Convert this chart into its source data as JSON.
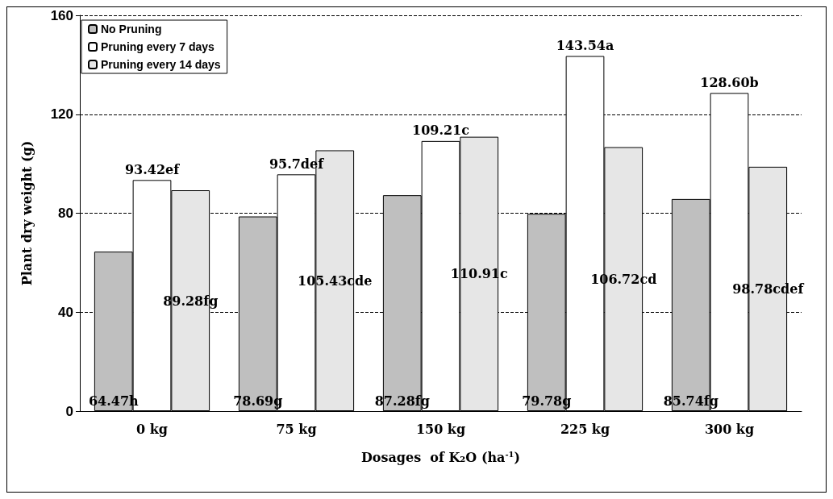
{
  "chart_data": {
    "type": "bar",
    "xlabel": "Dosages  of K₂O (ha$^{-1}$)",
    "ylabel": "Plant dry weight (g)",
    "categories": [
      "0 kg",
      "75 kg",
      "150 kg",
      "225 kg",
      "300 kg"
    ],
    "series": [
      {
        "name": "No Pruning",
        "color": "#bfbfbf",
        "values": [
          64.47,
          78.69,
          87.28,
          79.78,
          85.74
        ],
        "value_labels": [
          "64.47h",
          "78.69g",
          "87.28fg",
          "79.78g",
          "85.74fg"
        ]
      },
      {
        "name": "Pruning every 7 days",
        "color": "#ffffff",
        "values": [
          93.42,
          95.7,
          109.21,
          143.54,
          128.6
        ],
        "value_labels": [
          "93.42ef",
          "95.7def",
          "109.21c",
          "143.54a",
          "128.60b"
        ]
      },
      {
        "name": "Pruning every 14 days",
        "color": "#e6e6e6",
        "values": [
          89.28,
          105.43,
          110.91,
          106.72,
          98.78
        ],
        "value_labels": [
          "89.28fg",
          "105.43cde",
          "110.91c",
          "106.72cd",
          "98.78cdef"
        ]
      }
    ],
    "ylim": [
      0,
      160
    ],
    "yticks": [
      0,
      40,
      80,
      120,
      160
    ],
    "grid": "y",
    "legend": "top left"
  }
}
